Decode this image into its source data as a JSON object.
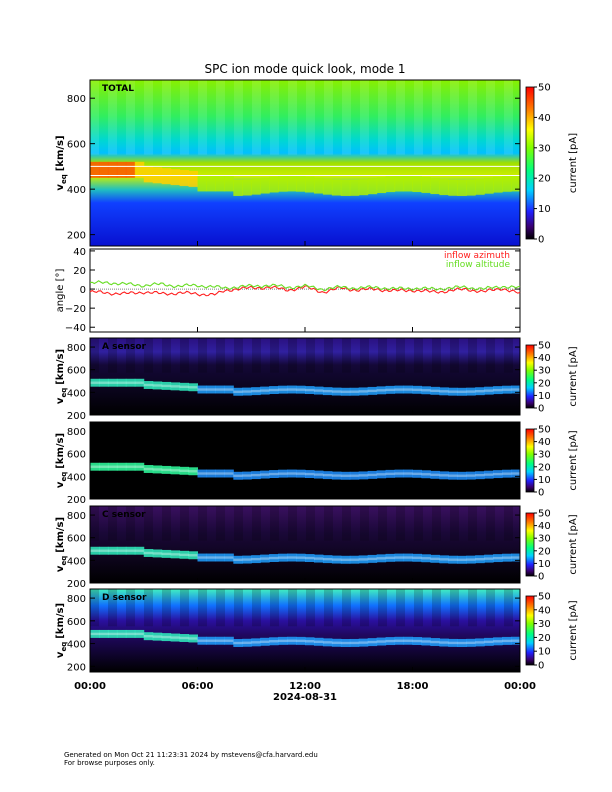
{
  "title": "SPC ion mode quick look, mode 1",
  "footer": {
    "line1": "Generated on Mon Oct 21 11:23:31 2024 by mstevens@cfa.harvard.edu",
    "line2": "For browse purposes only."
  },
  "colors": {
    "plot_frame": "#000000",
    "azimuth": "#ff2020",
    "altitude": "#66dd22"
  },
  "chart_data": [
    {
      "type": "heatmap",
      "panel": "TOTAL",
      "label": "TOTAL",
      "ylabel_main": "v",
      "ylabel_sub": "eq",
      "ylabel_unit": "[km/s]",
      "yticks": [
        "200",
        "400",
        "600",
        "800"
      ],
      "ylim": [
        150,
        880
      ],
      "colorbar": {
        "label": "current [pA]",
        "ticks": [
          "0",
          "10",
          "20",
          "30",
          "40",
          "50"
        ],
        "range": [
          0,
          50
        ]
      },
      "peak_velocity_profile": [
        490,
        480,
        460,
        440,
        430,
        420,
        415,
        410,
        405,
        410,
        405,
        400,
        395,
        390,
        395
      ]
    },
    {
      "type": "line",
      "panel": "angle",
      "ylabel": "angle [°]",
      "yticks": [
        "−40",
        "−20",
        "0",
        "20",
        "40"
      ],
      "ylim": [
        -45,
        42
      ],
      "series": [
        {
          "name": "inflow azimuth",
          "x_hours": [
            0,
            1,
            2,
            3,
            4,
            5,
            6,
            7,
            7.5,
            8,
            9,
            10,
            11,
            12,
            13,
            14,
            15,
            16,
            17,
            18,
            19,
            20,
            21,
            22,
            23,
            24
          ],
          "values": [
            -3,
            -4,
            -5,
            -3,
            -5,
            -4,
            -5,
            -6,
            -2,
            0,
            1,
            2,
            -1,
            2,
            -3,
            1,
            -1,
            0,
            -2,
            -1,
            -3,
            -2,
            0,
            -3,
            1,
            -5
          ]
        },
        {
          "name": "inflow altitude",
          "x_hours": [
            0,
            1,
            2,
            3,
            4,
            5,
            6,
            7,
            7.5,
            8,
            9,
            10,
            11,
            12,
            13,
            14,
            15,
            16,
            17,
            18,
            19,
            20,
            21,
            22,
            23,
            24
          ],
          "values": [
            6,
            7,
            5,
            4,
            5,
            3,
            4,
            2,
            1,
            2,
            3,
            4,
            2,
            3,
            0,
            2,
            1,
            2,
            0,
            1,
            0,
            1,
            2,
            0,
            3,
            1
          ]
        }
      ]
    },
    {
      "type": "heatmap",
      "panel": "A sensor",
      "label": "A sensor",
      "ylabel_main": "v",
      "ylabel_sub": "eq",
      "ylabel_unit": "[km/s]",
      "yticks": [
        "200",
        "400",
        "600",
        "800"
      ],
      "ylim": [
        200,
        880
      ],
      "colorbar": {
        "label": "current [pA]",
        "ticks": [
          "0",
          "10",
          "20",
          "30",
          "40",
          "50"
        ],
        "range": [
          0,
          50
        ]
      }
    },
    {
      "type": "heatmap",
      "panel": "B sensor",
      "label": "",
      "ylabel_main": "v",
      "ylabel_sub": "eq",
      "ylabel_unit": "[km/s]",
      "yticks": [
        "200",
        "400",
        "600",
        "800"
      ],
      "ylim": [
        200,
        880
      ],
      "colorbar": {
        "label": "current [pA]",
        "ticks": [
          "0",
          "10",
          "20",
          "30",
          "40",
          "50"
        ],
        "range": [
          0,
          50
        ]
      }
    },
    {
      "type": "heatmap",
      "panel": "C sensor",
      "label": "C sensor",
      "ylabel_main": "v",
      "ylabel_sub": "eq",
      "ylabel_unit": "[km/s]",
      "yticks": [
        "200",
        "400",
        "600",
        "800"
      ],
      "ylim": [
        200,
        880
      ],
      "colorbar": {
        "label": "current [pA]",
        "ticks": [
          "0",
          "10",
          "20",
          "30",
          "40",
          "50"
        ],
        "range": [
          0,
          50
        ]
      }
    },
    {
      "type": "heatmap",
      "panel": "D sensor",
      "label": "D sensor",
      "ylabel_main": "v",
      "ylabel_sub": "eq",
      "ylabel_unit": "[km/s]",
      "yticks": [
        "200",
        "400",
        "600",
        "800"
      ],
      "ylim": [
        150,
        880
      ],
      "colorbar": {
        "label": "current [pA]",
        "ticks": [
          "0",
          "10",
          "20",
          "30",
          "40",
          "50"
        ],
        "range": [
          0,
          50
        ]
      }
    }
  ],
  "xaxis": {
    "ticks": [
      "00:00",
      "06:00",
      "12:00",
      "18:00",
      "00:00"
    ],
    "date": "2024-08-31"
  }
}
